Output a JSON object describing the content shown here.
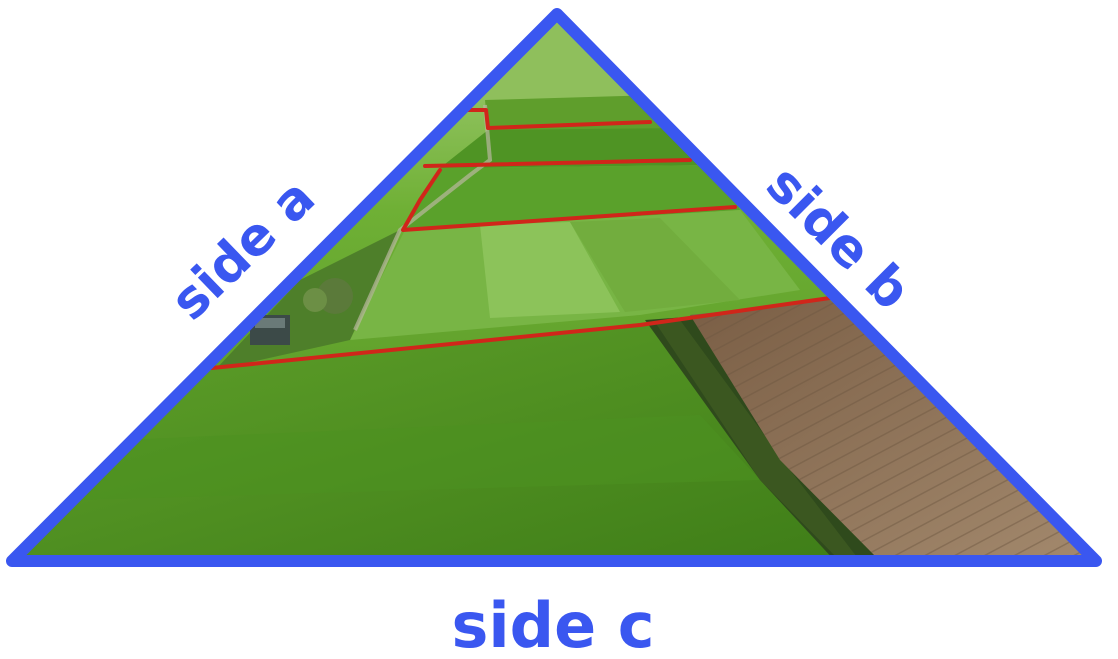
{
  "labels": {
    "side_a": "side a",
    "side_b": "side b",
    "side_c": "side c"
  },
  "colors": {
    "triangle_outline": "#3a57f0",
    "label_text": "#3a57f0",
    "field_boundary": "#d0261a",
    "field_green_dark": "#4f8f22",
    "field_green_light": "#7fbf3f",
    "plowed_soil": "#8e7358",
    "background": "#ffffff"
  },
  "image": {
    "subject": "aerial-farmland-photo"
  }
}
